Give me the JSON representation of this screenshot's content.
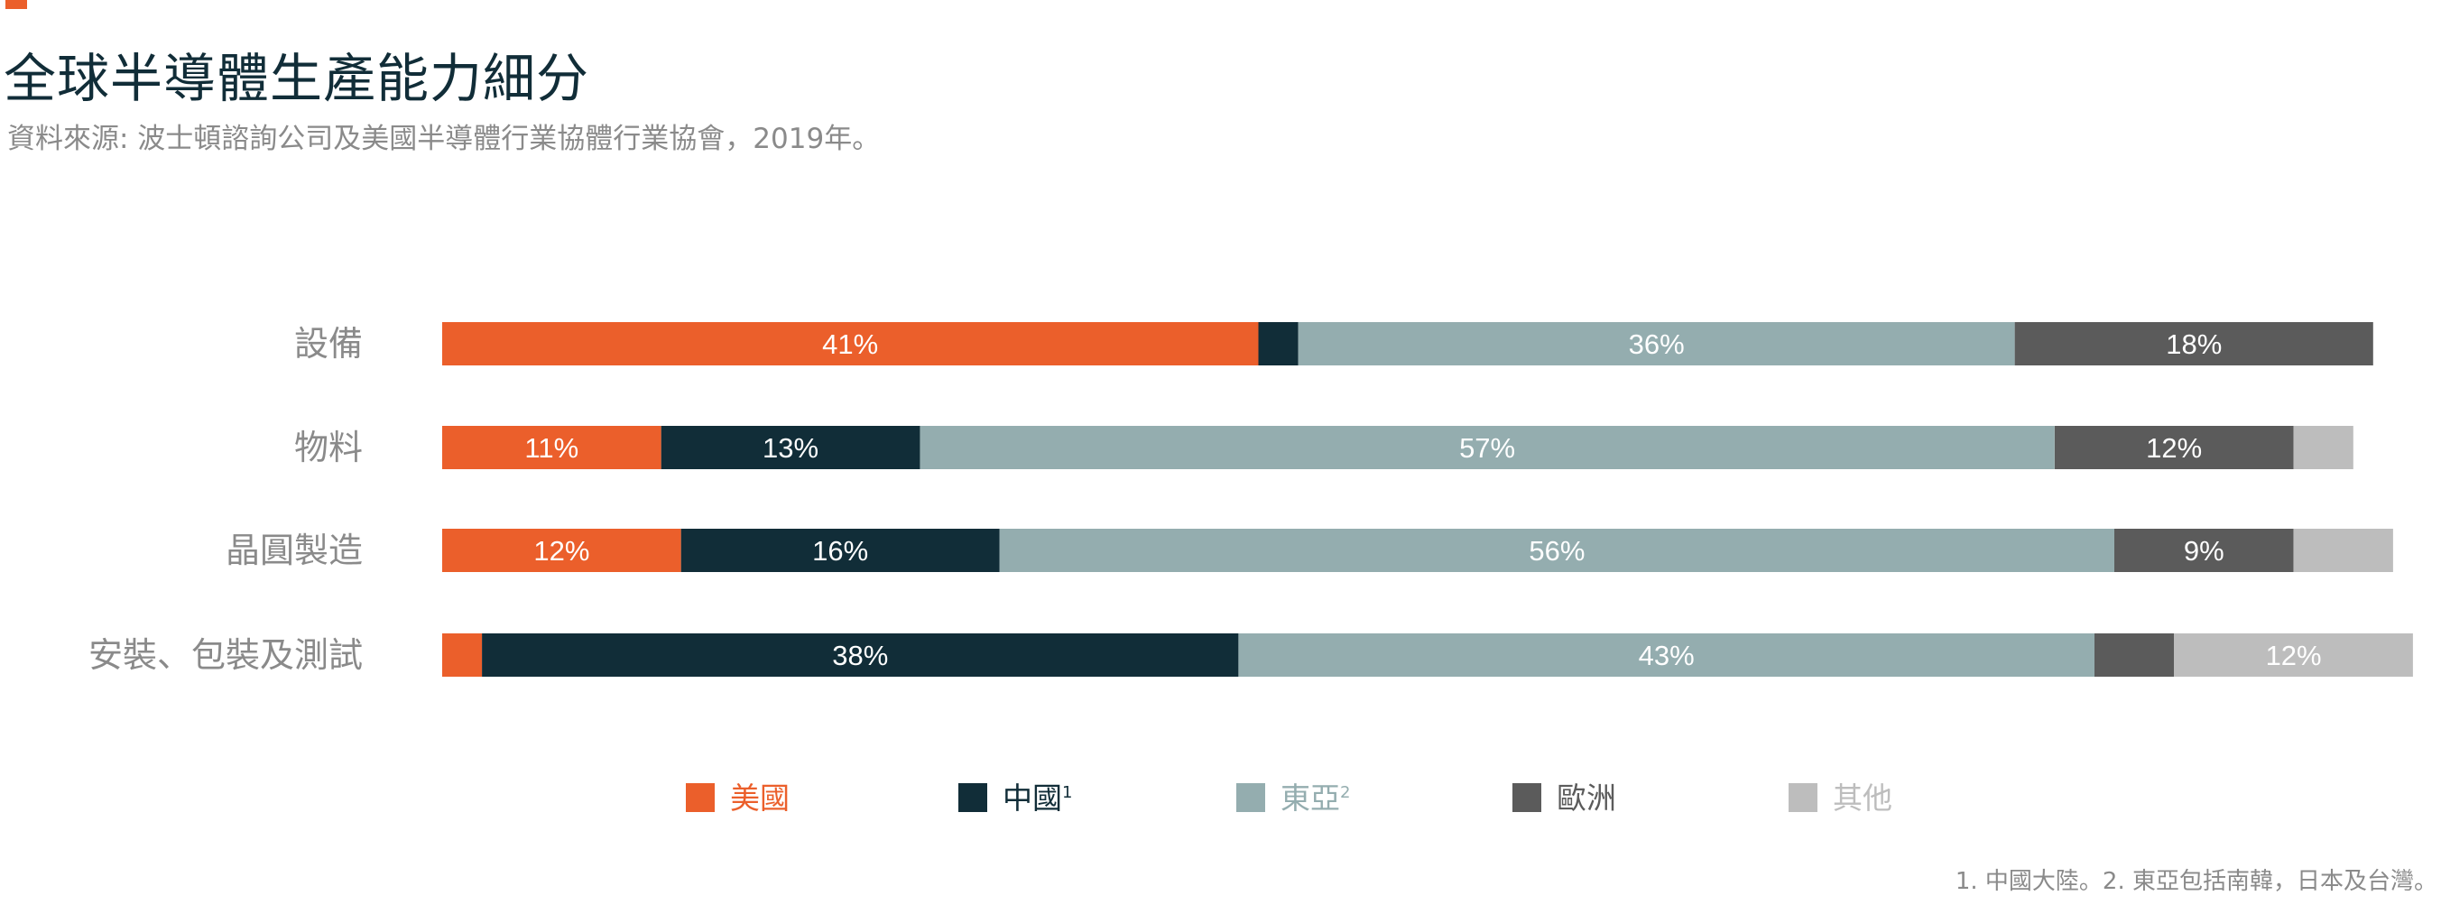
{
  "header": {
    "title": "全球半導體生產能力細分",
    "subtitle": "資料來源: 波士頓諮詢公司及美國半導體行業協體行業協會，2019年。"
  },
  "footnote": "1. 中國大陸。2. 東亞包括南韓，日本及台灣。",
  "colors": {
    "accent": "#eb5f2b",
    "title": "#112d38",
    "muted_text": "#8a8a8a"
  },
  "chart_data": {
    "type": "bar",
    "orientation": "horizontal",
    "stacked": true,
    "xlim": [
      0,
      100
    ],
    "legend_position": "bottom",
    "categories": [
      "設備",
      "物料",
      "晶圓製造",
      "安裝、包裝及測試"
    ],
    "series": [
      {
        "name": "美國",
        "superscript": "",
        "color": "#eb5f2b",
        "label_color": "#eb5f2b",
        "values": [
          41,
          11,
          12,
          2
        ],
        "labels": [
          "41%",
          "11%",
          "12%",
          ""
        ]
      },
      {
        "name": "中國",
        "superscript": "1",
        "color": "#112d38",
        "label_color": "#112d38",
        "values": [
          2,
          13,
          16,
          38
        ],
        "labels": [
          "",
          "13%",
          "16%",
          "38%"
        ]
      },
      {
        "name": "東亞",
        "superscript": "2",
        "color": "#94adaf",
        "label_color": "#94adaf",
        "values": [
          36,
          57,
          56,
          43
        ],
        "labels": [
          "36%",
          "57%",
          "56%",
          "43%"
        ]
      },
      {
        "name": "歐洲",
        "superscript": "",
        "color": "#5b5b5b",
        "label_color": "#5b5b5b",
        "values": [
          18,
          12,
          9,
          4
        ],
        "labels": [
          "18%",
          "12%",
          "9%",
          ""
        ]
      },
      {
        "name": "其他",
        "superscript": "",
        "color": "#bdbdbd",
        "label_color": "#bdbdbd",
        "values": [
          0,
          3,
          5,
          12
        ],
        "labels": [
          "",
          "",
          "",
          "12%"
        ]
      }
    ]
  }
}
